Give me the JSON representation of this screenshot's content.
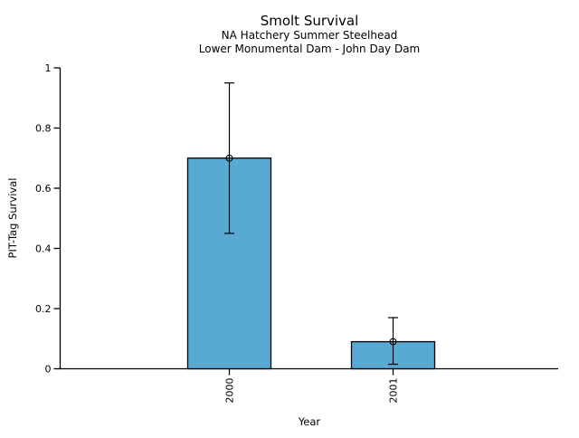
{
  "chart_data": {
    "type": "bar",
    "title": "Smolt Survival",
    "subtitle1": "NA Hatchery Summer Steelhead",
    "subtitle2": "Lower Monumental Dam - John Day Dam",
    "xlabel": "Year",
    "ylabel": "PIT-Tag Survival",
    "categories": [
      "2000",
      "2001"
    ],
    "values": [
      0.7,
      0.09
    ],
    "error_low": [
      0.45,
      0.015
    ],
    "error_high": [
      0.95,
      0.17
    ],
    "ylim": [
      0,
      1
    ],
    "ytick_values": [
      0,
      0.2,
      0.4,
      0.6,
      0.8,
      1
    ],
    "ytick_labels": [
      "0",
      "0.2",
      "0.4",
      "0.6",
      "0.8",
      "1"
    ],
    "marker": "open-circle",
    "legend": "none",
    "grid": false,
    "colors": {
      "bar_fill": "#58a9d4",
      "bar_edge": "#000000",
      "error_bar": "#000000",
      "axis": "#000000",
      "text": "#000000",
      "background": "#ffffff"
    }
  }
}
